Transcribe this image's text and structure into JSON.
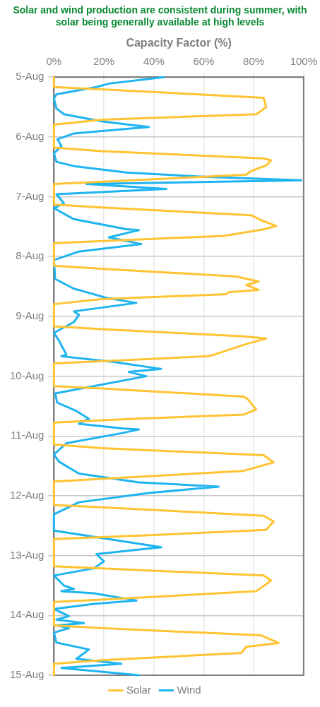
{
  "chart_data": {
    "type": "line",
    "annotations": [
      "Solar and wind production are consistent during summer, with solar being generally available at high levels"
    ],
    "orientation": "horizontal",
    "xlabel": "Capacity Factor (%)",
    "ylim": [
      "--08-15",
      "--08-05"
    ],
    "yticks": [
      {
        "value": "--08-05",
        "label": "5-Aug"
      },
      {
        "value": "--08-06",
        "label": "6-Aug"
      },
      {
        "value": "--08-07",
        "label": "7-Aug"
      },
      {
        "value": "--08-08",
        "label": "8-Aug"
      },
      {
        "value": "--08-09",
        "label": "9-Aug"
      },
      {
        "value": "--08-10",
        "label": "10-Aug"
      },
      {
        "value": "--08-11",
        "label": "11-Aug"
      },
      {
        "value": "--08-12",
        "label": "12-Aug"
      },
      {
        "value": "--08-13",
        "label": "13-Aug"
      },
      {
        "value": "--08-14",
        "label": "14-Aug"
      },
      {
        "value": "--08-15",
        "label": "15-Aug"
      }
    ],
    "xlim": [
      0,
      100
    ],
    "xticks": [
      {
        "value": 0,
        "label": "0%"
      },
      {
        "value": 20,
        "label": "20%"
      },
      {
        "value": 40,
        "label": "40%"
      },
      {
        "value": 60,
        "label": "60%"
      },
      {
        "value": 80,
        "label": "80%"
      },
      {
        "value": 100,
        "label": "100%"
      }
    ],
    "grid": true,
    "legend": "bottom",
    "line_style": "solid",
    "series": [
      {
        "name": "Solar",
        "color": "#ffc333",
        "x": [
          "--08-05T00:00",
          "--08-05T04:00",
          "--08-05T04:54",
          "--08-05T08:18",
          "--08-05T12:00",
          "--08-05T14:18",
          "--08-05T14:54",
          "--08-05T17:06",
          "--08-05T19:06",
          "--08-06T04:18",
          "--08-06T05:42",
          "--08-06T08:36",
          "--08-06T09:24",
          "--08-06T11:24",
          "--08-06T13:42",
          "--08-06T15:06",
          "--08-06T17:00",
          "--08-06T18:54",
          "--08-07T03:06",
          "--08-07T04:18",
          "--08-07T07:24",
          "--08-07T09:24",
          "--08-07T11:42",
          "--08-07T13:06",
          "--08-07T15:42",
          "--08-07T18:36",
          "--08-08T03:42",
          "--08-08T04:54",
          "--08-08T08:00",
          "--08-08T10:00",
          "--08-08T11:24",
          "--08-08T13:24",
          "--08-08T14:18",
          "--08-08T15:06",
          "--08-08T17:06",
          "--08-08T19:06",
          "--08-09T04:00",
          "--08-09T05:06",
          "--08-09T08:00",
          "--08-09T08:54",
          "--08-09T11:06",
          "--08-09T15:06",
          "--08-09T16:00",
          "--08-09T18:54",
          "--08-10T04:00",
          "--08-10T04:54",
          "--08-10T08:12",
          "--08-10T09:36",
          "--08-10T11:00",
          "--08-10T13:24",
          "--08-10T15:24",
          "--08-10T17:00",
          "--08-10T18:36",
          "--08-11T03:24",
          "--08-11T04:54",
          "--08-11T07:42",
          "--08-11T10:36",
          "--08-11T14:00",
          "--08-11T18:18",
          "--08-12T03:42",
          "--08-12T04:36",
          "--08-12T08:00",
          "--08-12T10:18",
          "--08-12T13:42",
          "--08-12T15:30",
          "--08-12T17:24",
          "--08-13T04:18",
          "--08-13T05:06",
          "--08-13T08:00",
          "--08-13T10:00",
          "--08-13T12:54",
          "--08-13T14:18",
          "--08-13T17:42",
          "--08-13T18:36",
          "--08-14T04:00",
          "--08-14T05:06",
          "--08-14T08:00",
          "--08-14T09:42",
          "--08-14T11:06",
          "--08-14T12:36",
          "--08-14T15:06",
          "--08-14T18:00",
          "--08-14T19:24",
          "--08-15T00:00"
        ],
        "values": [
          0,
          0,
          19,
          84,
          85,
          82,
          81,
          19,
          0,
          0,
          19,
          84,
          87,
          85,
          79,
          77,
          40,
          0,
          0,
          19,
          79,
          83,
          89,
          84,
          68,
          0,
          0,
          19,
          73,
          82,
          77,
          82,
          70,
          69,
          19,
          0,
          0,
          19,
          76,
          85,
          77,
          65,
          62,
          0,
          0,
          19,
          76,
          78,
          79,
          81,
          76,
          35,
          0,
          0,
          19,
          84,
          88,
          76,
          0,
          0,
          19,
          84,
          88,
          85,
          45,
          0,
          0,
          19,
          84,
          87,
          83,
          81,
          19,
          0,
          0,
          19,
          83,
          87,
          90,
          77,
          75,
          19,
          0,
          0
        ]
      },
      {
        "name": "Wind",
        "color": "#1eb4f0",
        "x": [
          "--08-05T00:00",
          "--08-05T02:36",
          "--08-05T04:00",
          "--08-05T06:54",
          "--08-05T08:36",
          "--08-05T12:36",
          "--08-05T14:54",
          "--08-05T17:42",
          "--08-05T19:06",
          "--08-05T20:00",
          "--08-05T22:36",
          "--08-06T00:54",
          "--08-06T03:42",
          "--08-06T06:36",
          "--08-06T10:00",
          "--08-06T11:42",
          "--08-06T14:18",
          "--08-06T16:00",
          "--08-06T17:24",
          "--08-06T18:54",
          "--08-06T20:54",
          "--08-06T23:00",
          "--08-07T02:36",
          "--08-07T04:36",
          "--08-07T09:00",
          "--08-07T13:00",
          "--08-07T13:24",
          "--08-07T16:18",
          "--08-07T19:00",
          "--08-07T22:00",
          "--08-08T01:24",
          "--08-08T09:00",
          "--08-08T12:54",
          "--08-08T13:42",
          "--08-08T16:36",
          "--08-08T18:36",
          "--08-08T22:00",
          "--08-08T23:24",
          "--08-09T02:18",
          "--08-09T06:36",
          "--08-09T09:42",
          "--08-09T15:24",
          "--08-09T16:00",
          "--08-09T18:18",
          "--08-09T21:06",
          "--08-09T22:18",
          "--08-10T00:00",
          "--08-10T06:54",
          "--08-10T10:36",
          "--08-10T14:00",
          "--08-10T17:06",
          "--08-10T19:06",
          "--08-10T21:00",
          "--08-10T21:24",
          "--08-10T22:54",
          "--08-11T02:54",
          "--08-11T07:24",
          "--08-11T10:18",
          "--08-11T15:06",
          "--08-11T18:36",
          "--08-11T20:18",
          "--08-11T22:54",
          "--08-12T02:36",
          "--08-12T07:24",
          "--08-12T14:00",
          "--08-12T20:36",
          "--08-12T23:24",
          "--08-13T02:18",
          "--08-13T05:06",
          "--08-13T08:00",
          "--08-13T12:00",
          "--08-13T13:24",
          "--08-13T14:18",
          "--08-13T15:06",
          "--08-13T18:00",
          "--08-13T19:24",
          "--08-13T21:24",
          "--08-14T00:18",
          "--08-14T01:42",
          "--08-14T03:06",
          "--08-14T04:00",
          "--08-14T05:06",
          "--08-14T06:54",
          "--08-14T10:54",
          "--08-14T13:42",
          "--08-14T17:24",
          "--08-14T19:24",
          "--08-14T21:06",
          "--08-15T00:00"
        ],
        "values": [
          44,
          22,
          17,
          1,
          0,
          1,
          4,
          19,
          30,
          38,
          8,
          1.4,
          3,
          0,
          1,
          8,
          29,
          60,
          99,
          13,
          45,
          1,
          4,
          0,
          8,
          29,
          34,
          22,
          35,
          10,
          0,
          0.5,
          8,
          11,
          21,
          33,
          8,
          10,
          8,
          0,
          2,
          5,
          3,
          24,
          43,
          30,
          37,
          0.5,
          1.3,
          9,
          14,
          10,
          28,
          34,
          27,
          5,
          0,
          2,
          10,
          34,
          66,
          38,
          10,
          0,
          0,
          43,
          17,
          20,
          16,
          0,
          4,
          8,
          3,
          16,
          33,
          16,
          0,
          6,
          1,
          12,
          1,
          6,
          0,
          1,
          14,
          9,
          27,
          3,
          34
        ]
      }
    ]
  }
}
